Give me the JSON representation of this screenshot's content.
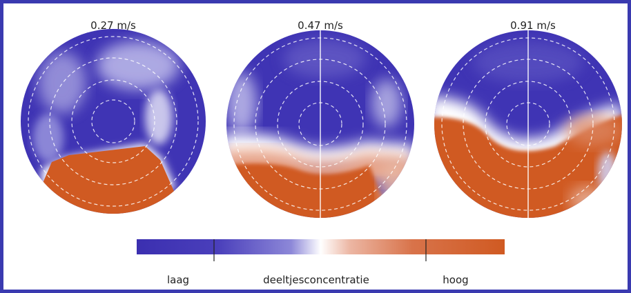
{
  "panels": [
    {
      "speed_label": "0.27 m/s"
    },
    {
      "speed_label": "0.47 m/s"
    },
    {
      "speed_label": "0.91 m/s"
    }
  ],
  "colorbar": {
    "low_label": "laag",
    "center_label": "deeltjesconcentratie",
    "high_label": "hoog",
    "colors": {
      "low": "#3b2fb0",
      "mid": "#ffffff",
      "high": "#d05a22"
    }
  }
}
